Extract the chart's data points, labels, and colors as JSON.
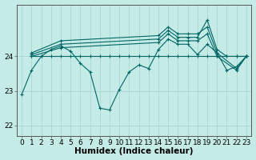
{
  "xlabel": "Humidex (Indice chaleur)",
  "ylabel": "",
  "background_color": "#c5ebe6",
  "line_color": "#006666",
  "grid_color": "#9fd4cc",
  "xlim": [
    -0.5,
    23.5
  ],
  "ylim": [
    21.7,
    25.5
  ],
  "yticks": [
    22,
    23,
    24
  ],
  "xticks": [
    0,
    1,
    2,
    3,
    4,
    5,
    6,
    7,
    8,
    9,
    10,
    11,
    12,
    13,
    14,
    15,
    16,
    17,
    18,
    19,
    20,
    21,
    22,
    23
  ],
  "series": [
    {
      "x": [
        0,
        1,
        2,
        3,
        4,
        5,
        6,
        7,
        8,
        9,
        10,
        11,
        12,
        13,
        14,
        15,
        16,
        17,
        18,
        19,
        20,
        21,
        22,
        23
      ],
      "y": [
        22.9,
        23.6,
        24.0,
        24.2,
        24.3,
        24.15,
        23.8,
        23.55,
        22.5,
        22.45,
        23.05,
        23.55,
        23.75,
        23.65,
        24.2,
        24.5,
        24.35,
        24.35,
        24.05,
        24.35,
        24.1,
        23.6,
        23.7,
        24.0
      ]
    },
    {
      "x": [
        1,
        2,
        3,
        4,
        5,
        6,
        7,
        8,
        9,
        10,
        11,
        12,
        13,
        14,
        15,
        16,
        17,
        18,
        19,
        20,
        21,
        22,
        23
      ],
      "y": [
        24.0,
        24.0,
        24.0,
        24.0,
        24.0,
        24.0,
        24.0,
        24.0,
        24.0,
        24.0,
        24.0,
        24.0,
        24.0,
        24.0,
        24.0,
        24.0,
        24.0,
        24.0,
        24.0,
        24.0,
        24.0,
        24.0,
        24.0
      ]
    },
    {
      "x": [
        1,
        4,
        14,
        15,
        16,
        17,
        18,
        19,
        20,
        21,
        22,
        23
      ],
      "y": [
        24.05,
        24.35,
        24.5,
        24.75,
        24.55,
        24.55,
        24.55,
        25.05,
        24.2,
        24.0,
        24.0,
        24.0
      ]
    },
    {
      "x": [
        1,
        4,
        14,
        15,
        16,
        17,
        18,
        19,
        20,
        22,
        23
      ],
      "y": [
        24.1,
        24.45,
        24.6,
        24.85,
        24.65,
        24.65,
        24.65,
        24.85,
        24.1,
        23.65,
        24.0
      ]
    },
    {
      "x": [
        1,
        4,
        14,
        15,
        16,
        17,
        18,
        19,
        20,
        22,
        23
      ],
      "y": [
        24.0,
        24.25,
        24.4,
        24.65,
        24.45,
        24.45,
        24.45,
        24.65,
        24.0,
        23.6,
        24.0
      ]
    }
  ],
  "figsize": [
    3.2,
    2.0
  ],
  "dpi": 100,
  "fontsize_ticks": 6.5,
  "fontsize_label": 7.5
}
